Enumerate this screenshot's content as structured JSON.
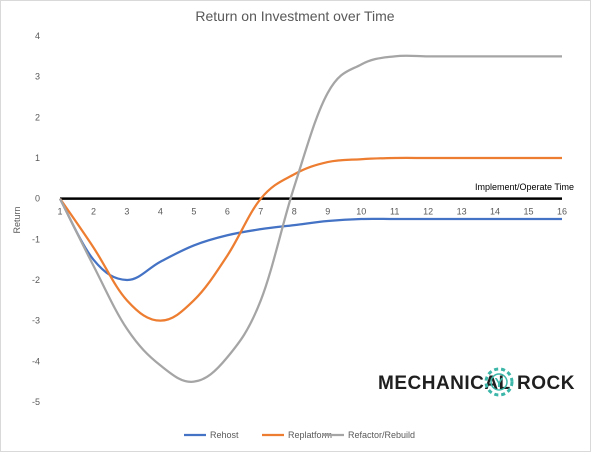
{
  "chart_data": {
    "type": "line",
    "title": "Return on Investment over Time",
    "xlabel": "Implement/Operate Time",
    "ylabel": "Return",
    "x": [
      1,
      2,
      3,
      4,
      5,
      6,
      7,
      8,
      9,
      10,
      11,
      12,
      13,
      14,
      15,
      16
    ],
    "xlim": [
      1,
      16
    ],
    "ylim": [
      -5,
      4
    ],
    "yticks": [
      4,
      3,
      2,
      1,
      0,
      -1,
      -2,
      -3,
      -4,
      -5
    ],
    "grid": false,
    "legend": "bottom",
    "series": [
      {
        "name": "Rehost",
        "color": "#4472c4",
        "values": [
          0,
          -1.5,
          -2,
          -1.55,
          -1.15,
          -0.9,
          -0.75,
          -0.65,
          -0.55,
          -0.5,
          -0.5,
          -0.5,
          -0.5,
          -0.5,
          -0.5,
          -0.5
        ]
      },
      {
        "name": "Replatform",
        "color": "#ed7d31",
        "values": [
          0,
          -1.2,
          -2.5,
          -3,
          -2.5,
          -1.4,
          0,
          0.6,
          0.9,
          0.97,
          1,
          1,
          1,
          1,
          1,
          1
        ]
      },
      {
        "name": "Refactor/Rebuild",
        "color": "#a5a5a5",
        "values": [
          0,
          -1.65,
          -3.2,
          -4.1,
          -4.5,
          -3.9,
          -2.5,
          0.3,
          2.6,
          3.3,
          3.5,
          3.5,
          3.5,
          3.5,
          3.5,
          3.5
        ]
      }
    ]
  },
  "logo": {
    "left_word": "MECHANICAL",
    "right_word": "ROCK",
    "mark_color": "#3bb6a8"
  }
}
